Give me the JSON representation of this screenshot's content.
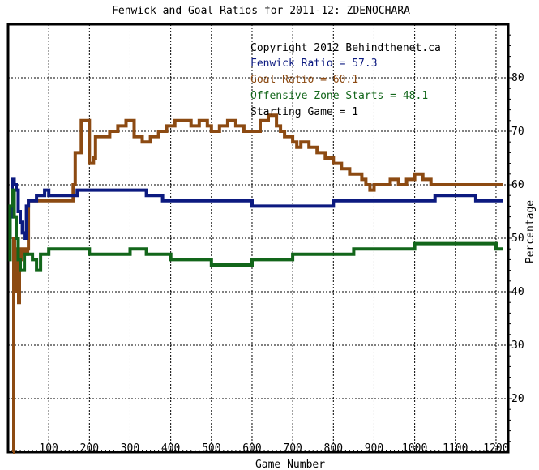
{
  "chart_data": {
    "type": "line",
    "title": "Fenwick and Goal Ratios for 2011-12: ZDENOCHARA",
    "xlabel": "Game Number",
    "ylabel": "Percentage",
    "xlim": [
      0,
      1230
    ],
    "ylim": [
      10,
      90
    ],
    "x_ticks": [
      100,
      200,
      300,
      400,
      500,
      600,
      700,
      800,
      900,
      1000,
      1100,
      1200
    ],
    "y_ticks": [
      20,
      30,
      40,
      50,
      60,
      70,
      80
    ],
    "grid": true,
    "legend_position": "top-right",
    "annotations": {
      "copyright": "Copyright 2012 Behindthenet.ca",
      "fenwick": "Fenwick Ratio = 57.3",
      "goal": "Goal Ratio = 60.1",
      "ozone": "Offensive Zone Starts = 48.1",
      "starting": "Starting Game = 1"
    },
    "colors": {
      "fenwick": "#0c1a80",
      "goal": "#8c4a12",
      "ozone": "#12661a",
      "text": "#000000"
    },
    "series": [
      {
        "key": "goal",
        "x": [
          12,
          14,
          16,
          18,
          20,
          22,
          24,
          26,
          28,
          30,
          32,
          40,
          48,
          50,
          60,
          70,
          80,
          90,
          100,
          150,
          160,
          165,
          175,
          180,
          190,
          200,
          205,
          210,
          215,
          230,
          250,
          270,
          290,
          310,
          330,
          350,
          370,
          390,
          410,
          430,
          450,
          470,
          490,
          500,
          520,
          540,
          560,
          580,
          600,
          620,
          640,
          660,
          670,
          680,
          700,
          710,
          720,
          740,
          760,
          780,
          800,
          820,
          840,
          860,
          870,
          880,
          890,
          900,
          920,
          940,
          960,
          980,
          1000,
          1020,
          1040,
          1060,
          1080,
          1100,
          1120,
          1140,
          1160,
          1180,
          1200,
          1218
        ],
        "values": [
          10,
          50,
          48,
          42,
          40,
          46,
          40,
          38,
          44,
          46,
          48,
          47,
          48,
          57,
          57,
          57,
          57,
          57,
          57,
          57,
          60,
          66,
          66,
          72,
          72,
          64,
          64,
          65,
          69,
          69,
          70,
          71,
          72,
          69,
          68,
          69,
          70,
          71,
          72,
          72,
          71,
          72,
          71,
          70,
          71,
          72,
          71,
          70,
          70,
          72,
          73,
          71,
          70,
          69,
          68,
          67,
          68,
          67,
          66,
          65,
          64,
          63,
          62,
          62,
          61,
          60,
          59,
          60,
          60,
          61,
          60,
          61,
          62,
          61,
          60,
          60,
          60,
          60,
          60,
          60,
          60,
          60,
          60,
          60
        ]
      },
      {
        "key": "fenwick",
        "x": [
          1,
          5,
          10,
          15,
          20,
          25,
          30,
          35,
          40,
          45,
          50,
          60,
          70,
          80,
          90,
          100,
          130,
          170,
          200,
          220,
          250,
          300,
          340,
          380,
          420,
          460,
          500,
          550,
          600,
          650,
          700,
          750,
          800,
          850,
          900,
          950,
          1000,
          1050,
          1100,
          1150,
          1200,
          1218
        ],
        "values": [
          49,
          54,
          61,
          60,
          59,
          55,
          53,
          51,
          50,
          56,
          57,
          57,
          58,
          58,
          59,
          58,
          58,
          59,
          59,
          59,
          59,
          59,
          58,
          57,
          57,
          57,
          57,
          57,
          56,
          56,
          56,
          56,
          57,
          57,
          57,
          57,
          57,
          58,
          58,
          57,
          57,
          57
        ]
      },
      {
        "key": "ozone",
        "x": [
          1,
          5,
          10,
          15,
          20,
          25,
          30,
          35,
          40,
          50,
          60,
          70,
          80,
          90,
          100,
          130,
          160,
          200,
          250,
          300,
          340,
          380,
          400,
          420,
          460,
          500,
          550,
          600,
          650,
          700,
          750,
          800,
          850,
          900,
          950,
          1000,
          1050,
          1100,
          1150,
          1200,
          1218
        ],
        "values": [
          46,
          56,
          59,
          54,
          50,
          46,
          44,
          44,
          47,
          47,
          46,
          44,
          47,
          47,
          48,
          48,
          48,
          47,
          47,
          48,
          47,
          47,
          46,
          46,
          46,
          45,
          45,
          46,
          46,
          47,
          47,
          47,
          48,
          48,
          48,
          49,
          49,
          49,
          49,
          48,
          48
        ]
      }
    ]
  }
}
